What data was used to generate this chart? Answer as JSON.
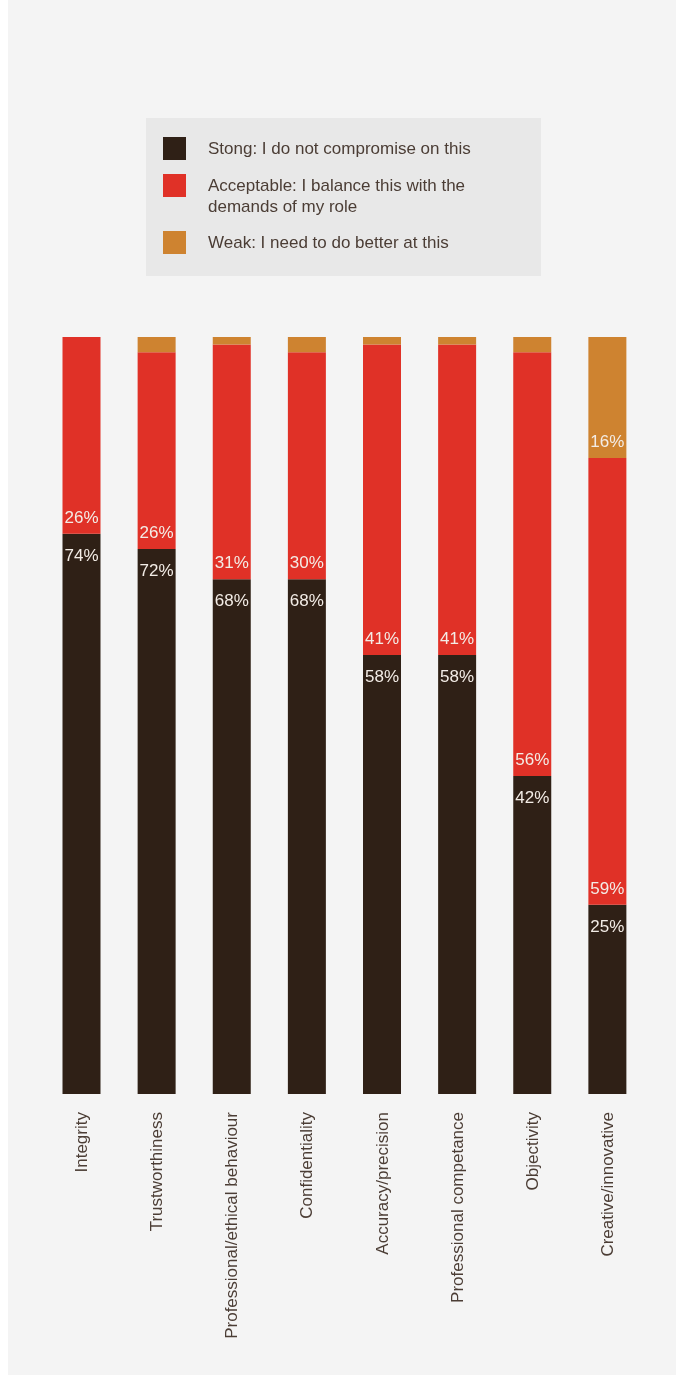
{
  "chart_data": {
    "type": "bar",
    "stacked": true,
    "categories": [
      "Integrity",
      "Trustworthiness",
      "Professional/ethical behaviour",
      "Confidentiality",
      "Accuracy/precision",
      "Professional competance",
      "Objectivity",
      "Creative/innovative"
    ],
    "series": [
      {
        "name": "Stong: I do not compromise on this",
        "color": "#2f2016",
        "values": [
          74,
          72,
          68,
          68,
          58,
          58,
          42,
          25
        ],
        "value_labels": [
          "74%",
          "72%",
          "68%",
          "68%",
          "58%",
          "58%",
          "42%",
          "25%"
        ]
      },
      {
        "name": "Acceptable: I balance this with the demands of my role",
        "color": "#e03127",
        "values": [
          26,
          26,
          31,
          30,
          41,
          41,
          56,
          59
        ],
        "value_labels": [
          "26%",
          "26%",
          "31%",
          "30%",
          "41%",
          "41%",
          "56%",
          "59%"
        ]
      },
      {
        "name": "Weak: I need to do better at this",
        "color": "#ce8330",
        "values": [
          0,
          2,
          1,
          2,
          1,
          1,
          2,
          16
        ],
        "value_labels": [
          null,
          null,
          null,
          null,
          null,
          null,
          null,
          "16%"
        ]
      }
    ],
    "legend": "top",
    "tick_labels": "x"
  }
}
